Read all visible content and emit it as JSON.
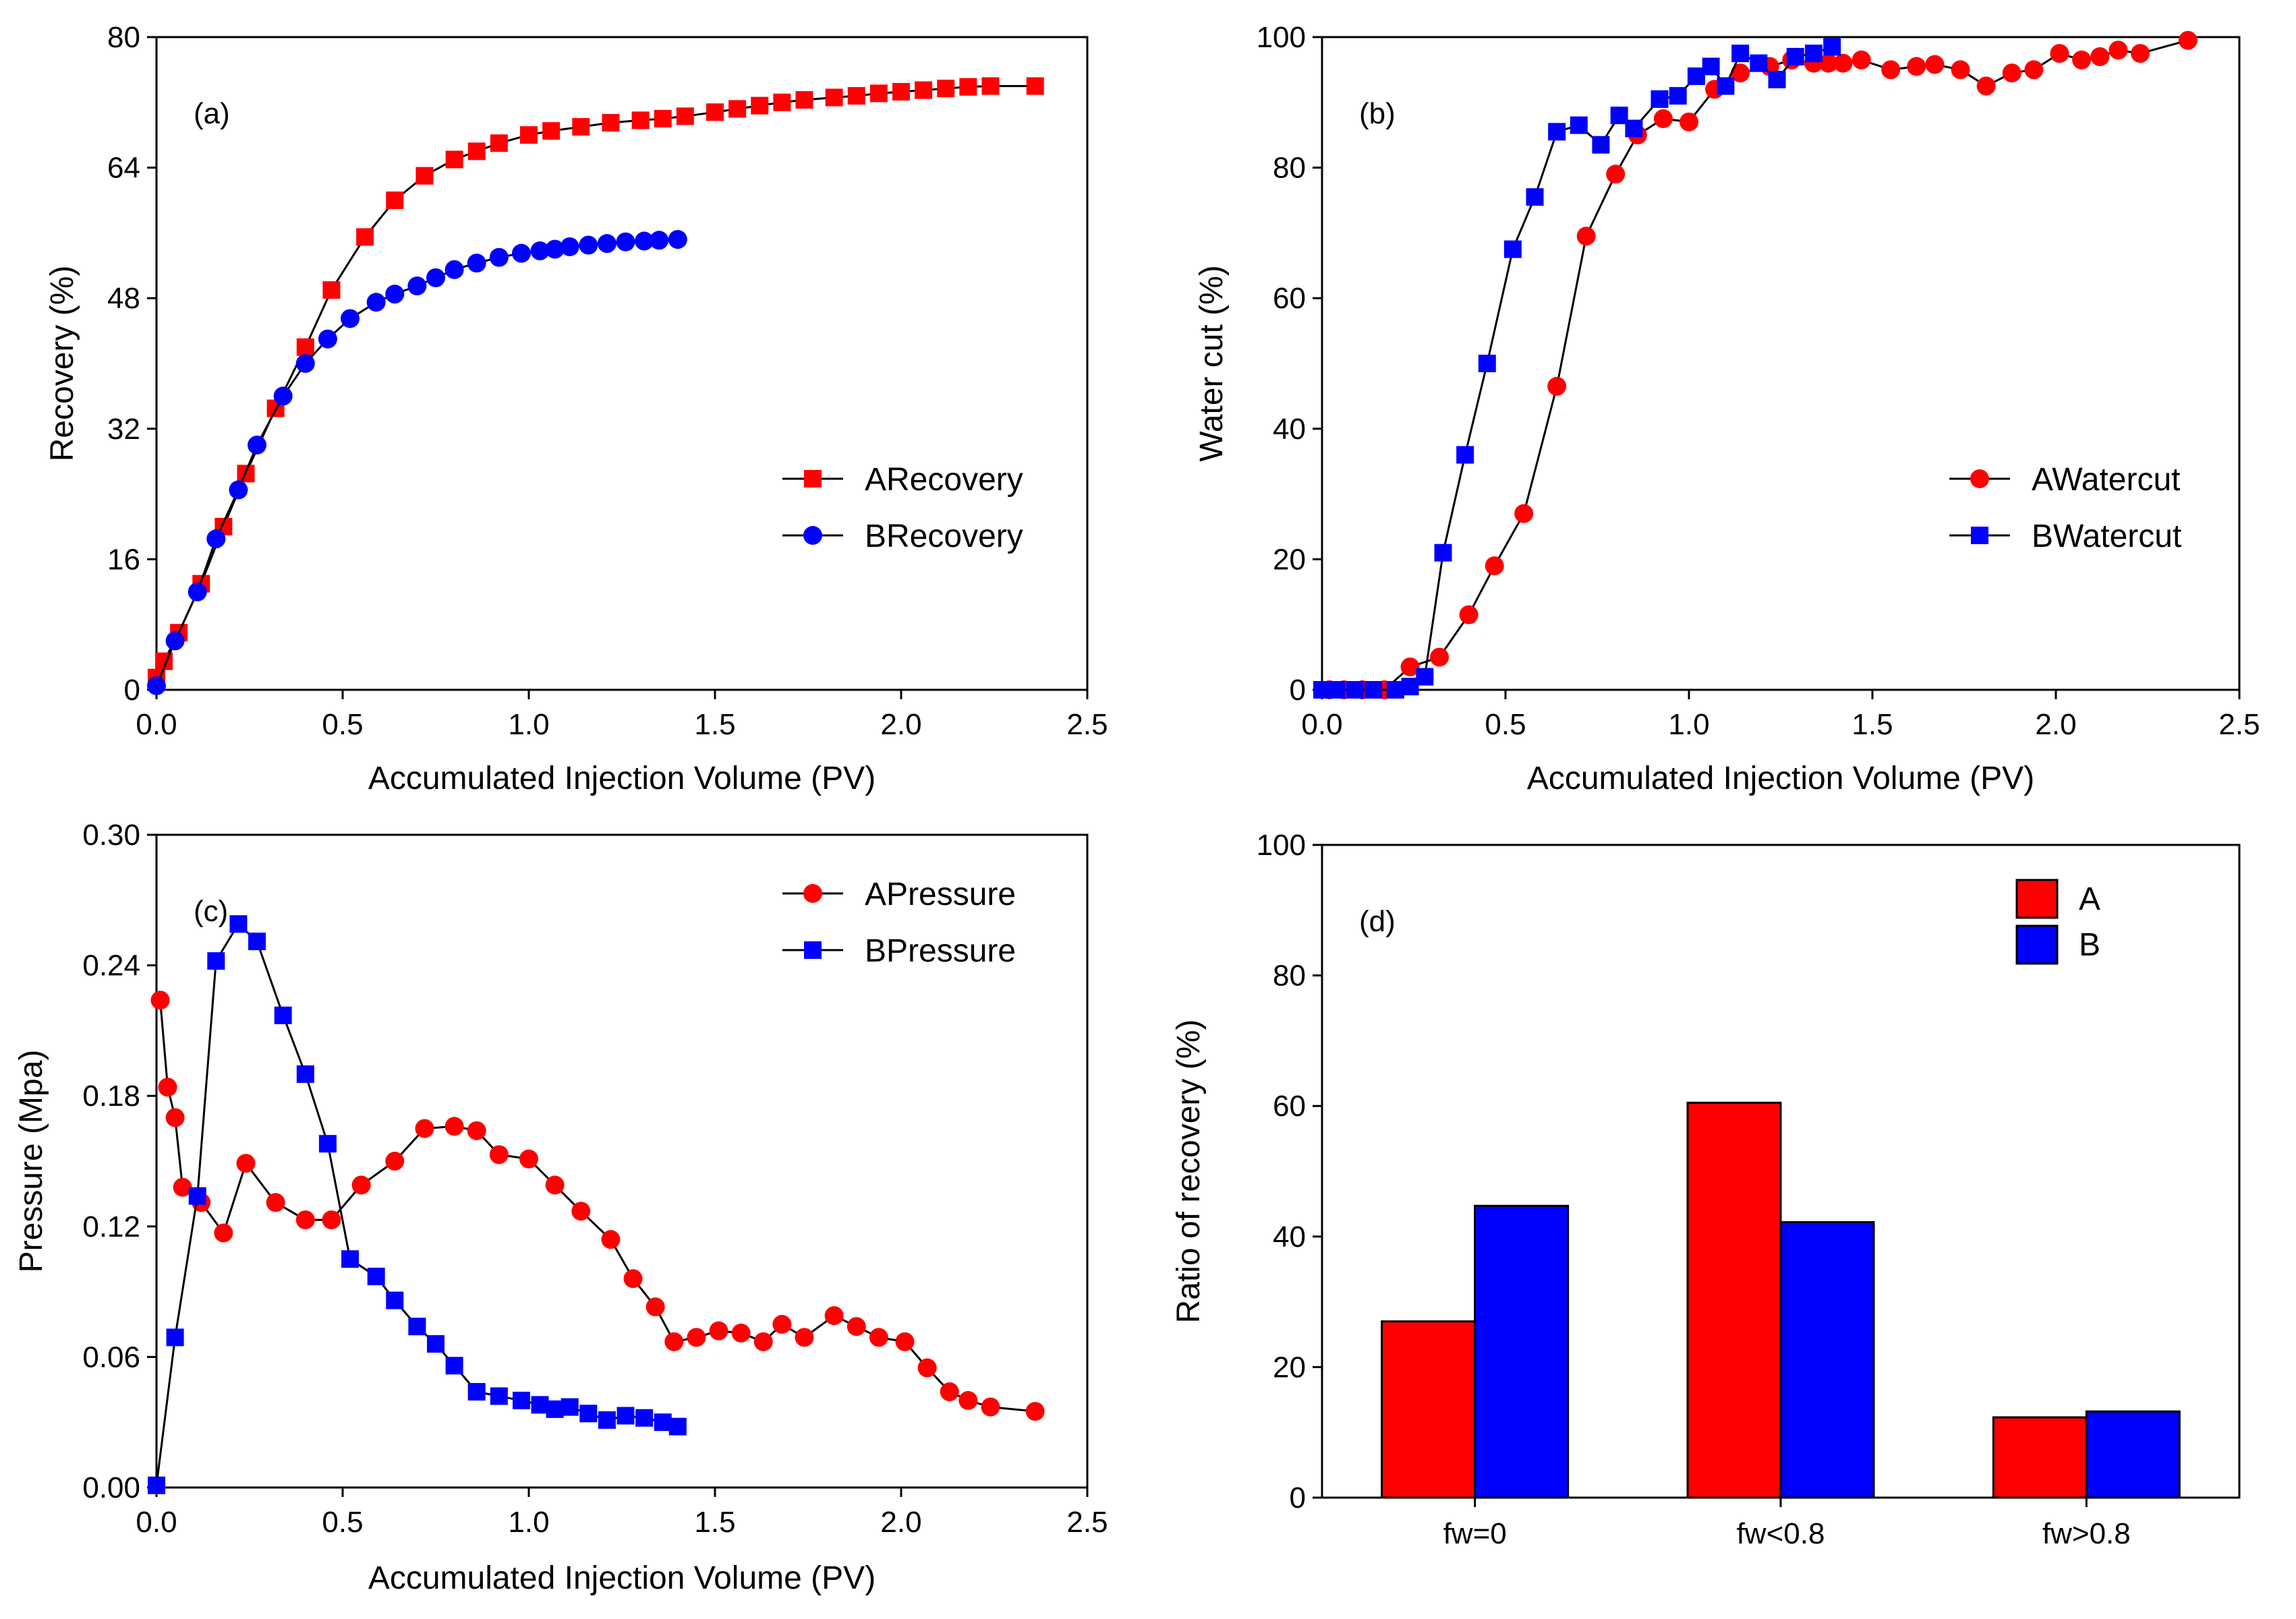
{
  "chart_data": [
    {
      "type": "line",
      "panel_label": "(a)",
      "xlabel": "Accumulated Injection Volume (PV)",
      "ylabel": "Recovery (%)",
      "xlim": [
        0,
        2.5
      ],
      "ylim": [
        0,
        80
      ],
      "xticks": [
        0,
        0.5,
        1,
        1.5,
        2,
        2.5
      ],
      "xtick_labels": [
        "0.0",
        "0.5",
        "1.0",
        "1.5",
        "2.0",
        "2.5"
      ],
      "yticks": [
        0,
        16,
        32,
        48,
        64,
        80
      ],
      "ytick_labels": [
        "0",
        "16",
        "32",
        "48",
        "64",
        "80"
      ],
      "legend_position": "center-right",
      "series": [
        {
          "name": "ARecovery",
          "color": "#ff0000",
          "marker": "square",
          "x": [
            0,
            0.02,
            0.06,
            0.12,
            0.18,
            0.24,
            0.32,
            0.4,
            0.47,
            0.56,
            0.64,
            0.72,
            0.8,
            0.86,
            0.92,
            1.0,
            1.06,
            1.14,
            1.22,
            1.3,
            1.36,
            1.42,
            1.5,
            1.56,
            1.62,
            1.68,
            1.74,
            1.82,
            1.88,
            1.94,
            2.0,
            2.06,
            2.12,
            2.18,
            2.24,
            2.36
          ],
          "y": [
            1.5,
            3.5,
            7,
            13,
            20,
            26.5,
            34.5,
            42,
            49,
            55.5,
            60,
            63,
            65,
            66,
            67,
            68,
            68.5,
            69,
            69.5,
            69.8,
            70,
            70.3,
            70.8,
            71.2,
            71.6,
            72,
            72.3,
            72.6,
            72.8,
            73.1,
            73.3,
            73.5,
            73.7,
            73.9,
            74,
            74
          ]
        },
        {
          "name": "BRecovery",
          "color": "#0000ff",
          "marker": "circle",
          "x": [
            0,
            0.05,
            0.11,
            0.16,
            0.22,
            0.27,
            0.34,
            0.4,
            0.46,
            0.52,
            0.59,
            0.64,
            0.7,
            0.75,
            0.8,
            0.86,
            0.92,
            0.98,
            1.03,
            1.07,
            1.11,
            1.16,
            1.21,
            1.26,
            1.31,
            1.35,
            1.4
          ],
          "y": [
            0.5,
            6,
            12,
            18.5,
            24.5,
            30,
            36,
            40,
            43,
            45.5,
            47.5,
            48.5,
            49.5,
            50.5,
            51.5,
            52.3,
            53,
            53.5,
            53.8,
            54,
            54.3,
            54.5,
            54.7,
            54.9,
            55,
            55.1,
            55.2
          ]
        }
      ]
    },
    {
      "type": "line",
      "panel_label": "(b)",
      "xlabel": "Accumulated Injection Volume (PV)",
      "ylabel": "Water cut (%)",
      "xlim": [
        0,
        2.5
      ],
      "ylim": [
        0,
        100
      ],
      "xticks": [
        0,
        0.5,
        1,
        1.5,
        2,
        2.5
      ],
      "xtick_labels": [
        "0.0",
        "0.5",
        "1.0",
        "1.5",
        "2.0",
        "2.5"
      ],
      "yticks": [
        0,
        20,
        40,
        60,
        80,
        100
      ],
      "ytick_labels": [
        "0",
        "20",
        "40",
        "60",
        "80",
        "100"
      ],
      "legend_position": "center-right",
      "series": [
        {
          "name": "AWatercut",
          "color": "#ff0000",
          "marker": "circle",
          "x": [
            0.02,
            0.06,
            0.11,
            0.17,
            0.24,
            0.32,
            0.4,
            0.47,
            0.55,
            0.64,
            0.72,
            0.8,
            0.86,
            0.93,
            1.0,
            1.07,
            1.14,
            1.22,
            1.28,
            1.34,
            1.38,
            1.42,
            1.47,
            1.55,
            1.62,
            1.67,
            1.74,
            1.81,
            1.88,
            1.94,
            2.01,
            2.07,
            2.12,
            2.17,
            2.23,
            2.36
          ],
          "y": [
            0,
            0,
            0,
            0,
            3.5,
            5,
            11.5,
            19,
            27,
            46.5,
            69.5,
            79,
            85,
            87.5,
            87,
            92,
            94.5,
            95.5,
            96.5,
            96,
            96,
            96,
            96.5,
            95,
            95.5,
            95.8,
            95,
            92.5,
            94.5,
            95,
            97.5,
            96.5,
            97,
            98,
            97.5,
            99.5
          ]
        },
        {
          "name": "BWatercut",
          "color": "#0000ff",
          "marker": "square",
          "x": [
            0,
            0.04,
            0.09,
            0.14,
            0.2,
            0.24,
            0.28,
            0.33,
            0.39,
            0.45,
            0.52,
            0.58,
            0.64,
            0.7,
            0.76,
            0.81,
            0.85,
            0.92,
            0.97,
            1.02,
            1.06,
            1.1,
            1.14,
            1.19,
            1.24,
            1.29,
            1.34,
            1.39
          ],
          "y": [
            0,
            0,
            0,
            0,
            0,
            0.5,
            2,
            21,
            36,
            50,
            67.5,
            75.5,
            85.5,
            86.5,
            83.5,
            88,
            86,
            90.5,
            91,
            94,
            95.5,
            92.5,
            97.5,
            96,
            93.5,
            97,
            97.5,
            98.5
          ]
        }
      ]
    },
    {
      "type": "line",
      "panel_label": "(c)",
      "xlabel": "Accumulated Injection Volume (PV)",
      "ylabel": "Pressure (Mpa)",
      "xlim": [
        0,
        2.5
      ],
      "ylim": [
        0,
        0.3
      ],
      "xticks": [
        0,
        0.5,
        1,
        1.5,
        2,
        2.5
      ],
      "xtick_labels": [
        "0.0",
        "0.5",
        "1.0",
        "1.5",
        "2.0",
        "2.5"
      ],
      "yticks": [
        0,
        0.06,
        0.12,
        0.18,
        0.24,
        0.3
      ],
      "ytick_labels": [
        "0.00",
        "0.06",
        "0.12",
        "0.18",
        "0.24",
        "0.30"
      ],
      "legend_position": "top-right",
      "series": [
        {
          "name": "APressure",
          "color": "#ff0000",
          "marker": "circle",
          "x": [
            0.01,
            0.03,
            0.05,
            0.07,
            0.12,
            0.18,
            0.24,
            0.32,
            0.4,
            0.47,
            0.55,
            0.64,
            0.72,
            0.8,
            0.86,
            0.92,
            1.0,
            1.07,
            1.14,
            1.22,
            1.28,
            1.34,
            1.39,
            1.45,
            1.51,
            1.57,
            1.63,
            1.68,
            1.74,
            1.82,
            1.88,
            1.94,
            2.01,
            2.07,
            2.13,
            2.18,
            2.24,
            2.36
          ],
          "y": [
            0.224,
            0.184,
            0.17,
            0.138,
            0.131,
            0.117,
            0.149,
            0.131,
            0.123,
            0.123,
            0.139,
            0.15,
            0.165,
            0.166,
            0.164,
            0.153,
            0.151,
            0.139,
            0.127,
            0.114,
            0.096,
            0.083,
            0.067,
            0.069,
            0.072,
            0.071,
            0.067,
            0.075,
            0.069,
            0.079,
            0.074,
            0.069,
            0.067,
            0.055,
            0.044,
            0.04,
            0.037,
            0.035
          ]
        },
        {
          "name": "BPressure",
          "color": "#0000ff",
          "marker": "square",
          "x": [
            0,
            0.05,
            0.11,
            0.16,
            0.22,
            0.27,
            0.34,
            0.4,
            0.46,
            0.52,
            0.59,
            0.64,
            0.7,
            0.75,
            0.8,
            0.86,
            0.92,
            0.98,
            1.03,
            1.07,
            1.11,
            1.16,
            1.21,
            1.26,
            1.31,
            1.36,
            1.4
          ],
          "y": [
            0.001,
            0.069,
            0.134,
            0.242,
            0.259,
            0.251,
            0.217,
            0.19,
            0.158,
            0.105,
            0.097,
            0.086,
            0.074,
            0.066,
            0.056,
            0.044,
            0.042,
            0.04,
            0.038,
            0.036,
            0.037,
            0.034,
            0.031,
            0.033,
            0.032,
            0.03,
            0.028
          ]
        }
      ]
    },
    {
      "type": "bar",
      "panel_label": "(d)",
      "xlabel": "",
      "ylabel": "Ratio of recovery (%)",
      "ylim": [
        0,
        100
      ],
      "yticks": [
        0,
        20,
        40,
        60,
        80,
        100
      ],
      "ytick_labels": [
        "0",
        "20",
        "40",
        "60",
        "80",
        "100"
      ],
      "categories": [
        "fw=0",
        "fw<0.8",
        "fw>0.8"
      ],
      "legend_position": "top-right",
      "series": [
        {
          "name": "A",
          "color": "#ff0000",
          "values": [
            27,
            60.5,
            12.3
          ]
        },
        {
          "name": "B",
          "color": "#0000ff",
          "values": [
            44.7,
            42.2,
            13.2
          ]
        }
      ]
    }
  ]
}
